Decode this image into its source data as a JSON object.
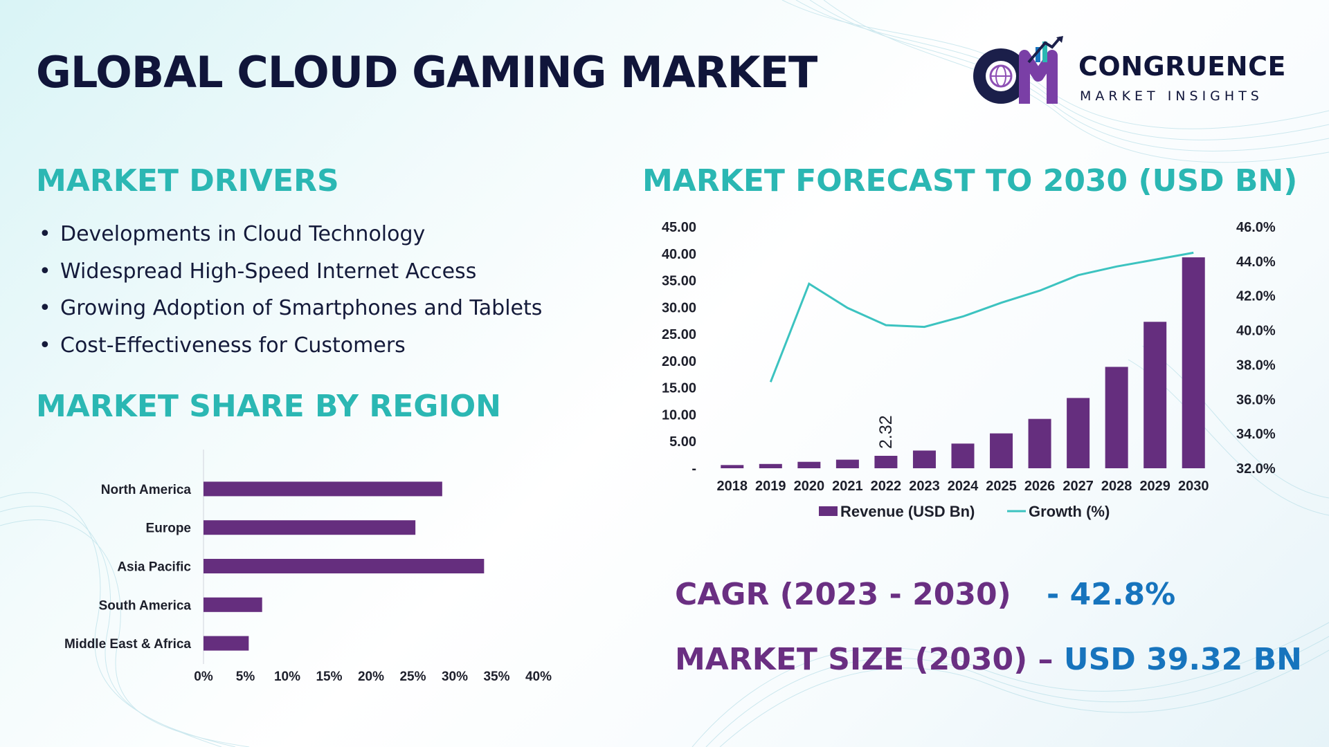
{
  "title": "GLOBAL CLOUD GAMING MARKET",
  "logo": {
    "name": "CONGRUENCE",
    "subtitle": "MARKET INSIGHTS"
  },
  "drivers": {
    "heading": "MARKET DRIVERS",
    "items": [
      "Developments in Cloud Technology",
      "Widespread High-Speed Internet Access",
      "Growing Adoption of Smartphones and Tablets",
      "Cost-Effectiveness for Customers"
    ]
  },
  "region": {
    "heading": "MARKET SHARE BY REGION"
  },
  "forecast": {
    "heading": "MARKET FORECAST TO 2030 (USD BN)"
  },
  "stats": {
    "cagr_label": "CAGR (2023 - 2030)",
    "cagr_value": "- 42.8%",
    "size_label": "MARKET SIZE (2030) – ",
    "size_value": "USD 39.32 BN"
  },
  "colors": {
    "title": "#10153a",
    "heading": "#2bb7b3",
    "bar": "#652e7e",
    "line": "#3cc3c0",
    "stat_label": "#6a2f82",
    "stat_value": "#1774bd"
  },
  "chart_data": [
    {
      "type": "bar",
      "orientation": "horizontal",
      "categories": [
        "North America",
        "Europe",
        "Asia Pacific",
        "South America",
        "Middle East & Africa"
      ],
      "values": [
        28.5,
        25.3,
        33.5,
        7.0,
        5.4
      ],
      "xticks": [
        "0%",
        "5%",
        "10%",
        "15%",
        "20%",
        "25%",
        "30%",
        "35%",
        "40%"
      ],
      "xlim": [
        0,
        40
      ],
      "grid": false
    },
    {
      "type": "bar",
      "categories": [
        "2018",
        "2019",
        "2020",
        "2021",
        "2022",
        "2023",
        "2024",
        "2025",
        "2026",
        "2027",
        "2028",
        "2029",
        "2030"
      ],
      "series": [
        {
          "name": "Revenue (USD Bn)",
          "type": "bar",
          "axis": "left",
          "values": [
            0.6,
            0.8,
            1.2,
            1.6,
            2.32,
            3.3,
            4.6,
            6.5,
            9.2,
            13.1,
            18.9,
            27.3,
            39.32
          ]
        },
        {
          "name": "Growth (%)",
          "type": "line",
          "axis": "right",
          "values": [
            null,
            37.0,
            42.7,
            41.3,
            40.3,
            40.2,
            40.8,
            41.6,
            42.3,
            43.2,
            43.7,
            44.1,
            44.5
          ]
        }
      ],
      "data_labels": [
        {
          "category": "2022",
          "text": "2.32"
        }
      ],
      "yticks_left": [
        "-",
        "5.00",
        "10.00",
        "15.00",
        "20.00",
        "25.00",
        "30.00",
        "35.00",
        "40.00",
        "45.00"
      ],
      "yticks_right": [
        "32.0%",
        "34.0%",
        "36.0%",
        "38.0%",
        "40.0%",
        "42.0%",
        "44.0%",
        "46.0%"
      ],
      "ylim_left": [
        0,
        45
      ],
      "ylim_right": [
        32,
        46
      ],
      "legend": "bottom",
      "grid": false
    }
  ]
}
